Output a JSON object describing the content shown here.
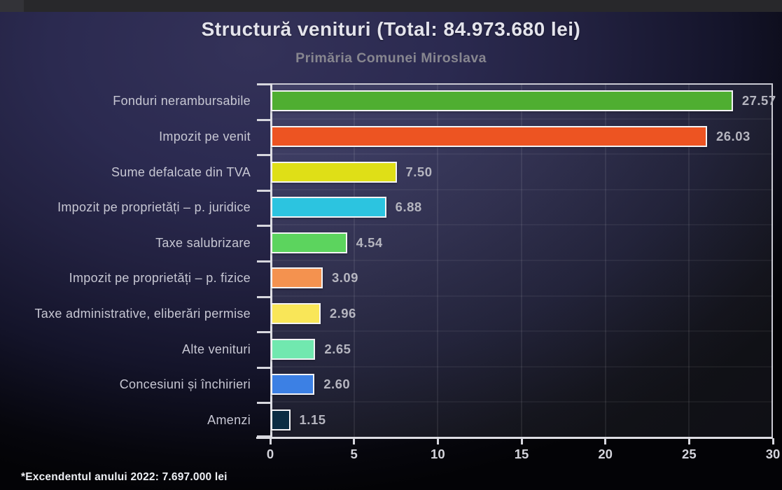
{
  "window": {
    "topbar_present": true
  },
  "chart_data": {
    "type": "bar",
    "orientation": "horizontal",
    "title": "Structură venituri (Total: 84.973.680 lei)",
    "subtitle": "Primăria Comunei Miroslava",
    "categories": [
      "Fonduri nerambursabile",
      "Impozit pe venit",
      "Sume defalcate din TVA",
      "Impozit pe proprietăți – p. juridice",
      "Taxe salubrizare",
      "Impozit pe proprietăți – p. fizice",
      "Taxe administrative, eliberări permise",
      "Alte venituri",
      "Concesiuni și închirieri",
      "Amenzi"
    ],
    "values": [
      27.57,
      26.03,
      7.5,
      6.88,
      4.54,
      3.09,
      2.96,
      2.65,
      2.6,
      1.15
    ],
    "value_labels": [
      "27.57",
      "26.03",
      "7.50",
      "6.88",
      "4.54",
      "3.09",
      "2.96",
      "2.65",
      "2.60",
      "1.15"
    ],
    "bar_colors": [
      "#4fae31",
      "#ed5422",
      "#dfdf17",
      "#2cc4e0",
      "#5cd45e",
      "#f4924f",
      "#f9e658",
      "#71e8af",
      "#3c80e4",
      "#0a2c42"
    ],
    "xlabel": "",
    "ylabel": "",
    "xlim": [
      0,
      30
    ],
    "x_ticks": [
      0,
      5,
      10,
      15,
      20,
      25,
      30
    ],
    "grid": true,
    "legend": false,
    "footnote": "*Excendentul anului 2022: 7.697.000 lei",
    "colors": {
      "axis": "#dddde3",
      "tick_label": "#d4d4db",
      "value_label": "#b5b5bf",
      "category_label": "#c7c7d3",
      "title": "#e4e4ec",
      "subtitle": "#87868f",
      "background_top_left": "#343259",
      "background_bottom_right": "#030306"
    }
  }
}
